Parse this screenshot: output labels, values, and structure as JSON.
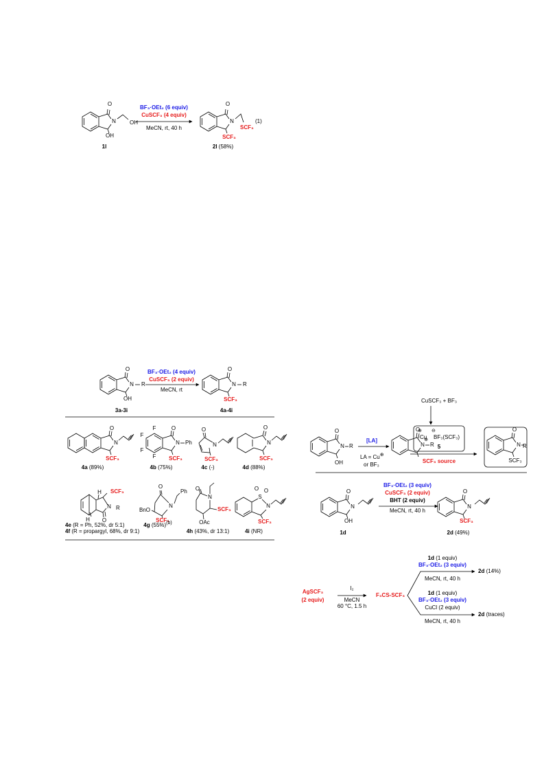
{
  "scheme1": {
    "reagent_1": "BF₃·OEt₂ (6 equiv)",
    "reagent_2": "CuSCF₃ (4 equiv)",
    "conditions": "MeCN, rt, 40 h",
    "equation_number": "(1)",
    "start": {
      "label": "1l",
      "o": "O",
      "n": "N",
      "oh_chain": "OH",
      "oh": "OH"
    },
    "product": {
      "label": "2l",
      "yield": "(58%)",
      "o": "O",
      "n": "N",
      "scf3_chain": "SCF₃",
      "scf3": "SCF₃"
    }
  },
  "scheme2": {
    "reagent_1": "BF₃·OEt₂ (4 equiv)",
    "reagent_2": "CuSCF₃ (2 equiv)",
    "conditions": "MeCN, rt",
    "start": {
      "label": "3a-3i",
      "o": "O",
      "n": "N",
      "r": "R",
      "oh": "OH"
    },
    "product": {
      "label": "4a-4i",
      "o": "O",
      "n": "N",
      "r": "R",
      "scf3": "SCF₃"
    },
    "4a": {
      "label": "4a",
      "yield": "(89%)",
      "o": "O",
      "n": "N",
      "scf3": "SCF₃"
    },
    "4b": {
      "label": "4b",
      "yield": "(75%)",
      "o": "O",
      "n": "N",
      "ph": "Ph",
      "scf3": "SCF₃",
      "f": [
        "F",
        "F",
        "F",
        "F"
      ]
    },
    "4c": {
      "label": "4c",
      "yield": "(-)",
      "o": "O",
      "n": "N",
      "scf3": "SCF₃"
    },
    "4d": {
      "label": "4d",
      "yield": "(88%)",
      "o": "O",
      "n": "N",
      "scf3": "SCF₃"
    },
    "4e": {
      "label": "4e",
      "detail": "(R = Ph, 52%, dr 5:1)",
      "o": "O",
      "n": "N",
      "r": "R",
      "h1": "H",
      "h2": "H",
      "scf3": "SCF₃"
    },
    "4f": {
      "label": "4f",
      "detail": "(R = propargyl, 68%, dr 9:1)"
    },
    "4g": {
      "label": "4g",
      "yield": "(55%)",
      "note": "(b)",
      "o": "O",
      "n": "N",
      "ph": "Ph",
      "bno": "BnO",
      "scf3": "SCF₃"
    },
    "4h": {
      "label": "4h",
      "yield": "(43%, dr 13:1)",
      "o": "O",
      "n": "N",
      "oac": "OAc",
      "scf3": "SCF₃"
    },
    "4i": {
      "label": "4i",
      "yield": "(NR)",
      "s": "S",
      "o1": "O",
      "o2": "O",
      "n": "N",
      "scf3": "SCF₃"
    }
  },
  "scheme3": {
    "reagents": "CuSCF₃ + BF₃",
    "cu": "Cu",
    "cu_charge": "⊕",
    "borate": "BF₃(SCF₃)",
    "borate_charge": "⊖",
    "species_label": "5",
    "source": "SCF₃ source",
    "la": "[LA]",
    "la_def": "LA = Cu",
    "la_charge": "⊕",
    "la_alt": "or BF₃",
    "start": {
      "o": "O",
      "n": "N",
      "r": "R",
      "oh": "OH"
    },
    "iminium": {
      "o": "O",
      "n": "N",
      "charge": "⊕",
      "r": "R"
    },
    "product": {
      "o": "O",
      "n": "N",
      "r": "R",
      "scf3": "SCF₃"
    }
  },
  "scheme4": {
    "reagent_1": "BF₃·OEt₂ (3 equiv)",
    "reagent_2": "CuSCF₃ (2 equiv)",
    "reagent_3": "BHT (2 equiv)",
    "conditions": "MeCN, rt, 40 h",
    "start": {
      "label": "1d",
      "o": "O",
      "n": "N",
      "oh": "OH"
    },
    "product": {
      "label": "2d",
      "yield": "(49%)",
      "o": "O",
      "n": "N",
      "scf3": "SCF₃"
    }
  },
  "scheme5": {
    "reagent": "AgSCF₃",
    "reagent_amount": "(2 equiv)",
    "oxidant": "I₂",
    "solvent": "MeCN",
    "conditions": "60 °C, 1.5 h",
    "intermediate": "F₃CS-SCF₃",
    "upper": {
      "substrate": "1d",
      "substrate_amount": "(1 equiv)",
      "additive": "BF₃·OEt₂ (3 equiv)",
      "conditions": "MeCN, rt, 40 h",
      "product": "2d",
      "yield": "(14%)"
    },
    "lower": {
      "substrate": "1d",
      "substrate_amount": "(1 equiv)",
      "additive": "BF₃·OEt₂ (3 equiv)",
      "additive_2": "CuCl (2 equiv)",
      "conditions": "MeCN, rt, 40 h",
      "product": "2d",
      "yield": "(traces)"
    }
  }
}
